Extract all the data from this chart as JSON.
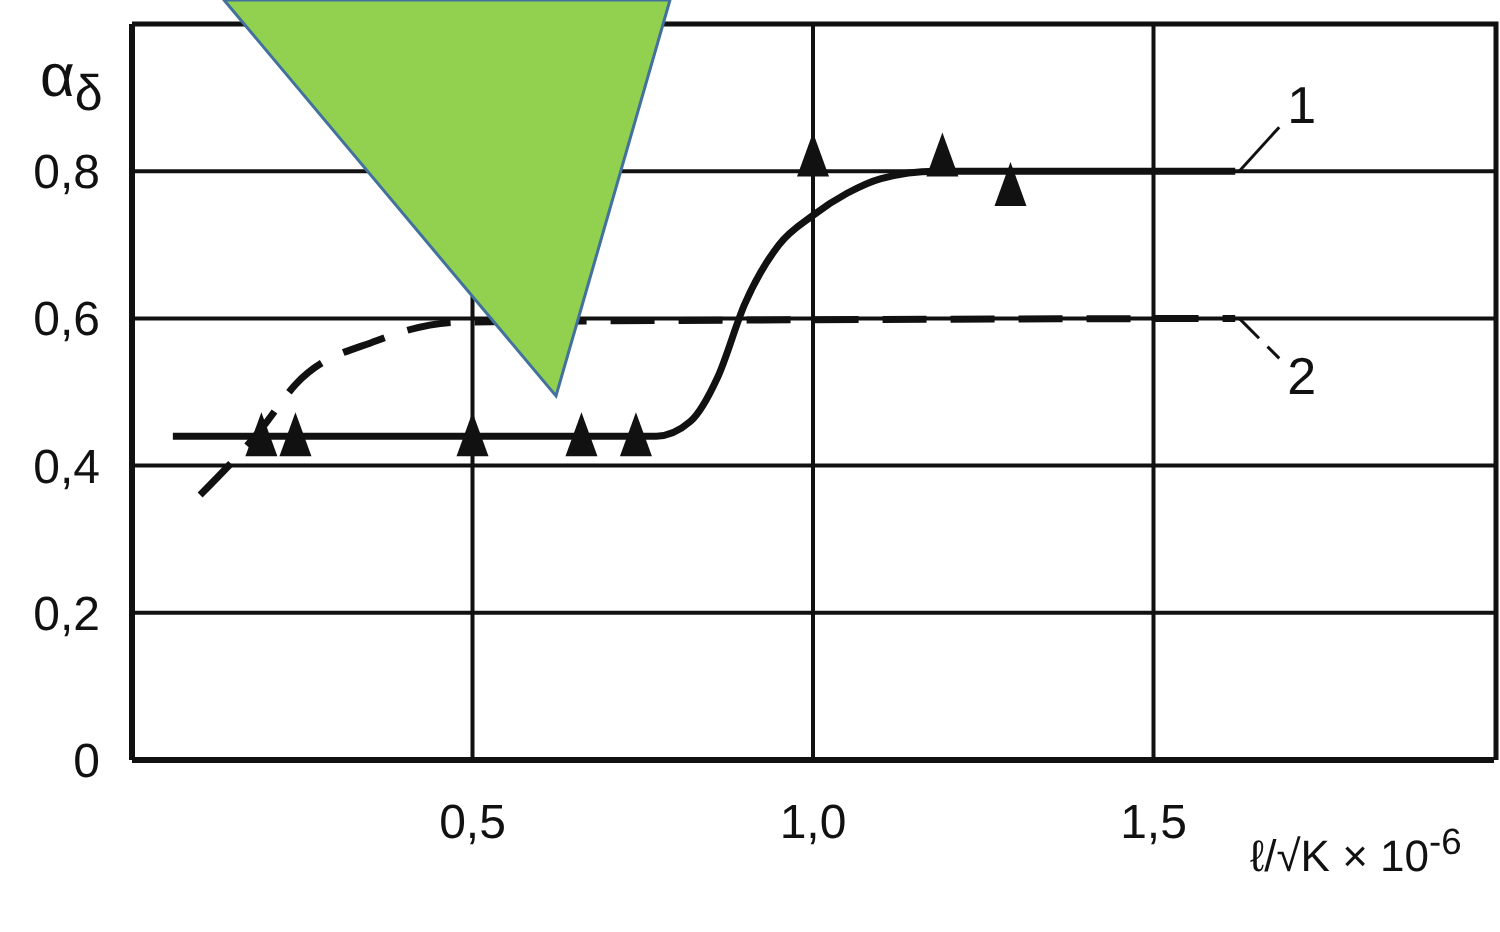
{
  "chart_data": {
    "type": "line",
    "xlabel": "ℓ/√K × 10$^{-6}$",
    "ylabel": "α$_{δ}$",
    "xlim": [
      0,
      2.0
    ],
    "ylim": [
      0,
      1.0
    ],
    "xticks": [
      {
        "value": 0.5,
        "label": "0,5"
      },
      {
        "value": 1.0,
        "label": "1,0"
      },
      {
        "value": 1.5,
        "label": "1,5"
      }
    ],
    "yticks": [
      0,
      {
        "value": 0.2,
        "label": "0,2"
      },
      {
        "value": 0.4,
        "label": "0,4"
      },
      {
        "value": 0.6,
        "label": "0,6"
      },
      {
        "value": 0.8,
        "label": "0,8"
      }
    ],
    "grid": true,
    "legend": "right",
    "series": [
      {
        "name": "1",
        "color": "#111111",
        "line_style": "solid",
        "marker": "none",
        "x": [
          0.06,
          0.77,
          0.82,
          0.86,
          0.9,
          0.95,
          1.0,
          1.05,
          1.1,
          1.18,
          1.62
        ],
        "values": [
          0.44,
          0.44,
          0.46,
          0.52,
          0.62,
          0.7,
          0.74,
          0.77,
          0.79,
          0.8,
          0.8
        ]
      },
      {
        "name": "2",
        "color": "#111111",
        "line_style": "dashed",
        "marker": "none",
        "x": [
          0.1,
          0.19,
          0.24,
          0.36,
          0.48,
          1.62
        ],
        "values": [
          0.36,
          0.45,
          0.51,
          0.57,
          0.595,
          0.6
        ]
      },
      {
        "type": "scatter",
        "color": "#111111",
        "marker": "triangle",
        "x": [
          0.19,
          0.24,
          0.5,
          0.66,
          0.74,
          1.0,
          1.19,
          1.29
        ],
        "values": [
          0.44,
          0.44,
          0.44,
          0.44,
          0.44,
          0.82,
          0.82,
          0.78
        ]
      }
    ]
  }
}
